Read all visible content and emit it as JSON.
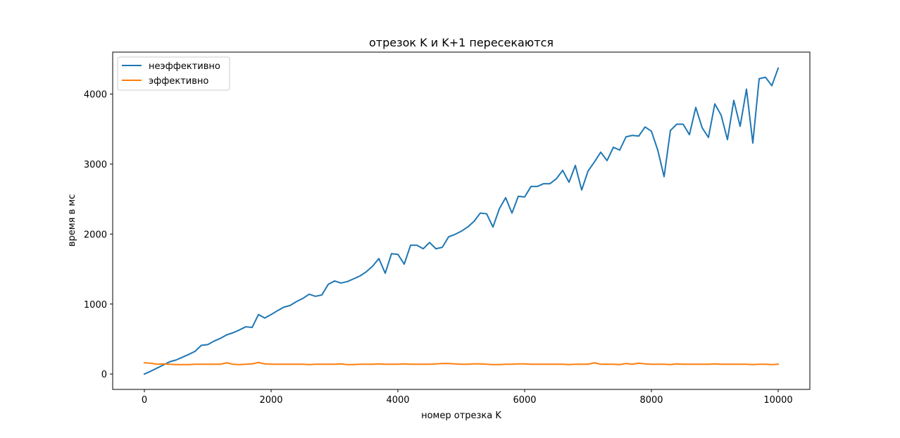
{
  "chart_data": {
    "type": "line",
    "title": "отрезок K и K+1 пересекаются",
    "xlabel": "номер отрезка K",
    "ylabel": "время в мс",
    "xlim": [
      -500,
      10500
    ],
    "ylim": [
      -220,
      4600
    ],
    "xticks": [
      0,
      2000,
      4000,
      6000,
      8000,
      10000
    ],
    "xtick_labels": [
      "0",
      "2000",
      "4000",
      "6000",
      "8000",
      "10000"
    ],
    "yticks": [
      0,
      1000,
      2000,
      3000,
      4000
    ],
    "ytick_labels": [
      "0",
      "1000",
      "2000",
      "3000",
      "4000"
    ],
    "grid": false,
    "legend_position": "upper-left",
    "x": [
      0,
      100,
      200,
      300,
      400,
      500,
      600,
      700,
      800,
      900,
      1000,
      1100,
      1200,
      1300,
      1400,
      1500,
      1600,
      1700,
      1800,
      1900,
      2000,
      2100,
      2200,
      2300,
      2400,
      2500,
      2600,
      2700,
      2800,
      2900,
      3000,
      3100,
      3200,
      3300,
      3400,
      3500,
      3600,
      3700,
      3800,
      3900,
      4000,
      4100,
      4200,
      4300,
      4400,
      4500,
      4600,
      4700,
      4800,
      4900,
      5000,
      5100,
      5200,
      5300,
      5400,
      5500,
      5600,
      5700,
      5800,
      5900,
      6000,
      6100,
      6200,
      6300,
      6400,
      6500,
      6600,
      6700,
      6800,
      6900,
      7000,
      7100,
      7200,
      7300,
      7400,
      7500,
      7600,
      7700,
      7800,
      7900,
      8000,
      8100,
      8200,
      8300,
      8400,
      8500,
      8600,
      8700,
      8800,
      8900,
      9000,
      9100,
      9200,
      9300,
      9400,
      9500,
      9600,
      9700,
      9800,
      9900,
      10000
    ],
    "series": [
      {
        "name": "неэффективно",
        "color": "#1f77b4",
        "values": [
          0,
          40,
          85,
          130,
          175,
          200,
          240,
          280,
          325,
          410,
          420,
          470,
          510,
          560,
          590,
          630,
          675,
          665,
          850,
          800,
          850,
          905,
          955,
          980,
          1035,
          1080,
          1140,
          1110,
          1130,
          1280,
          1330,
          1300,
          1320,
          1360,
          1400,
          1460,
          1540,
          1650,
          1440,
          1720,
          1710,
          1570,
          1840,
          1840,
          1790,
          1880,
          1790,
          1810,
          1960,
          1995,
          2040,
          2100,
          2180,
          2300,
          2290,
          2100,
          2360,
          2520,
          2300,
          2540,
          2530,
          2680,
          2680,
          2720,
          2720,
          2790,
          2910,
          2740,
          2980,
          2630,
          2900,
          3030,
          3170,
          3050,
          3240,
          3200,
          3390,
          3410,
          3400,
          3530,
          3470,
          3200,
          2820,
          3480,
          3570,
          3570,
          3420,
          3810,
          3520,
          3380,
          3860,
          3700,
          3350,
          3910,
          3540,
          4070,
          3300,
          4220,
          4240,
          4120,
          4370
        ]
      },
      {
        "name": "эффективно",
        "color": "#ff7f0e",
        "values": [
          160,
          155,
          140,
          145,
          140,
          135,
          135,
          135,
          140,
          140,
          140,
          140,
          140,
          160,
          140,
          135,
          140,
          145,
          165,
          145,
          140,
          140,
          140,
          140,
          140,
          140,
          135,
          140,
          140,
          140,
          140,
          145,
          135,
          135,
          140,
          140,
          140,
          145,
          140,
          140,
          140,
          145,
          140,
          140,
          140,
          140,
          145,
          150,
          150,
          145,
          140,
          140,
          145,
          145,
          140,
          135,
          135,
          140,
          140,
          145,
          145,
          140,
          140,
          140,
          140,
          140,
          140,
          135,
          140,
          140,
          140,
          160,
          140,
          140,
          140,
          135,
          150,
          140,
          155,
          145,
          140,
          140,
          140,
          135,
          145,
          140,
          140,
          140,
          140,
          140,
          145,
          140,
          140,
          140,
          140,
          140,
          135,
          140,
          140,
          135,
          140
        ]
      }
    ]
  }
}
